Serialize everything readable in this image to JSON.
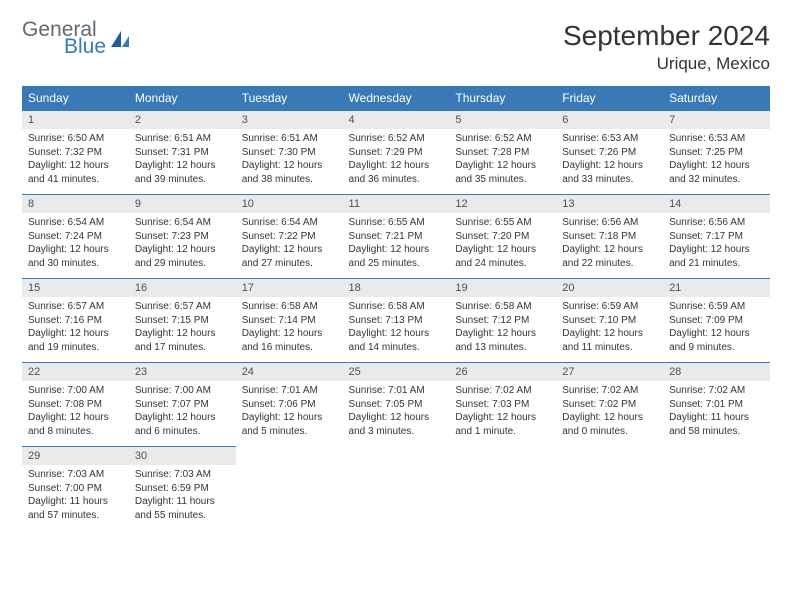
{
  "logo": {
    "general": "General",
    "blue": "Blue"
  },
  "title": "September 2024",
  "location": "Urique, Mexico",
  "day_headers": [
    "Sunday",
    "Monday",
    "Tuesday",
    "Wednesday",
    "Thursday",
    "Friday",
    "Saturday"
  ],
  "colors": {
    "header_bg": "#3879b6",
    "header_text": "#ffffff",
    "daynum_bg": "#e9eaeb",
    "border": "#3879b6",
    "body_text": "#333537"
  },
  "days": [
    {
      "n": "1",
      "sr": "6:50 AM",
      "ss": "7:32 PM",
      "dl": "12 hours and 41 minutes."
    },
    {
      "n": "2",
      "sr": "6:51 AM",
      "ss": "7:31 PM",
      "dl": "12 hours and 39 minutes."
    },
    {
      "n": "3",
      "sr": "6:51 AM",
      "ss": "7:30 PM",
      "dl": "12 hours and 38 minutes."
    },
    {
      "n": "4",
      "sr": "6:52 AM",
      "ss": "7:29 PM",
      "dl": "12 hours and 36 minutes."
    },
    {
      "n": "5",
      "sr": "6:52 AM",
      "ss": "7:28 PM",
      "dl": "12 hours and 35 minutes."
    },
    {
      "n": "6",
      "sr": "6:53 AM",
      "ss": "7:26 PM",
      "dl": "12 hours and 33 minutes."
    },
    {
      "n": "7",
      "sr": "6:53 AM",
      "ss": "7:25 PM",
      "dl": "12 hours and 32 minutes."
    },
    {
      "n": "8",
      "sr": "6:54 AM",
      "ss": "7:24 PM",
      "dl": "12 hours and 30 minutes."
    },
    {
      "n": "9",
      "sr": "6:54 AM",
      "ss": "7:23 PM",
      "dl": "12 hours and 29 minutes."
    },
    {
      "n": "10",
      "sr": "6:54 AM",
      "ss": "7:22 PM",
      "dl": "12 hours and 27 minutes."
    },
    {
      "n": "11",
      "sr": "6:55 AM",
      "ss": "7:21 PM",
      "dl": "12 hours and 25 minutes."
    },
    {
      "n": "12",
      "sr": "6:55 AM",
      "ss": "7:20 PM",
      "dl": "12 hours and 24 minutes."
    },
    {
      "n": "13",
      "sr": "6:56 AM",
      "ss": "7:18 PM",
      "dl": "12 hours and 22 minutes."
    },
    {
      "n": "14",
      "sr": "6:56 AM",
      "ss": "7:17 PM",
      "dl": "12 hours and 21 minutes."
    },
    {
      "n": "15",
      "sr": "6:57 AM",
      "ss": "7:16 PM",
      "dl": "12 hours and 19 minutes."
    },
    {
      "n": "16",
      "sr": "6:57 AM",
      "ss": "7:15 PM",
      "dl": "12 hours and 17 minutes."
    },
    {
      "n": "17",
      "sr": "6:58 AM",
      "ss": "7:14 PM",
      "dl": "12 hours and 16 minutes."
    },
    {
      "n": "18",
      "sr": "6:58 AM",
      "ss": "7:13 PM",
      "dl": "12 hours and 14 minutes."
    },
    {
      "n": "19",
      "sr": "6:58 AM",
      "ss": "7:12 PM",
      "dl": "12 hours and 13 minutes."
    },
    {
      "n": "20",
      "sr": "6:59 AM",
      "ss": "7:10 PM",
      "dl": "12 hours and 11 minutes."
    },
    {
      "n": "21",
      "sr": "6:59 AM",
      "ss": "7:09 PM",
      "dl": "12 hours and 9 minutes."
    },
    {
      "n": "22",
      "sr": "7:00 AM",
      "ss": "7:08 PM",
      "dl": "12 hours and 8 minutes."
    },
    {
      "n": "23",
      "sr": "7:00 AM",
      "ss": "7:07 PM",
      "dl": "12 hours and 6 minutes."
    },
    {
      "n": "24",
      "sr": "7:01 AM",
      "ss": "7:06 PM",
      "dl": "12 hours and 5 minutes."
    },
    {
      "n": "25",
      "sr": "7:01 AM",
      "ss": "7:05 PM",
      "dl": "12 hours and 3 minutes."
    },
    {
      "n": "26",
      "sr": "7:02 AM",
      "ss": "7:03 PM",
      "dl": "12 hours and 1 minute."
    },
    {
      "n": "27",
      "sr": "7:02 AM",
      "ss": "7:02 PM",
      "dl": "12 hours and 0 minutes."
    },
    {
      "n": "28",
      "sr": "7:02 AM",
      "ss": "7:01 PM",
      "dl": "11 hours and 58 minutes."
    },
    {
      "n": "29",
      "sr": "7:03 AM",
      "ss": "7:00 PM",
      "dl": "11 hours and 57 minutes."
    },
    {
      "n": "30",
      "sr": "7:03 AM",
      "ss": "6:59 PM",
      "dl": "11 hours and 55 minutes."
    }
  ],
  "labels": {
    "sunrise": "Sunrise:",
    "sunset": "Sunset:",
    "daylight": "Daylight:"
  }
}
